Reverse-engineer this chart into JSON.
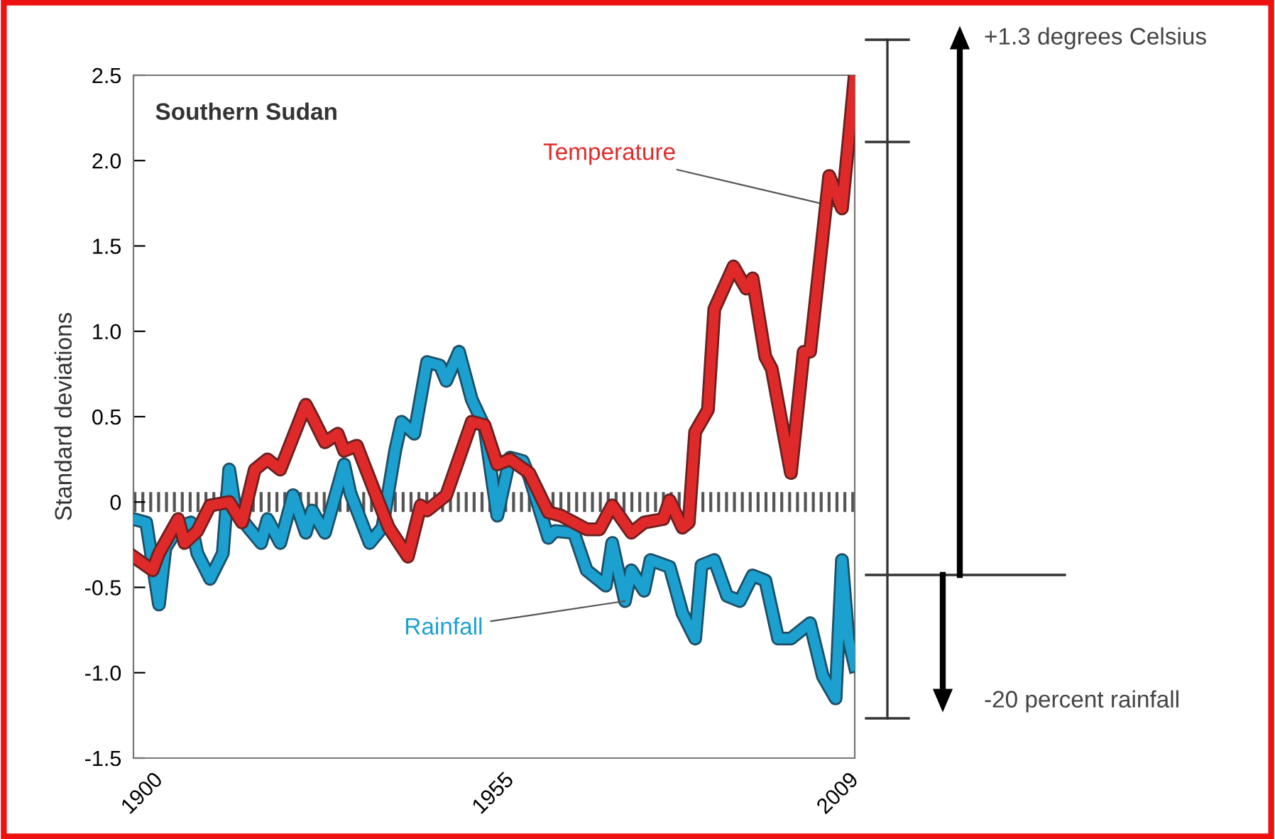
{
  "chart_data": {
    "type": "line",
    "title": "Southern Sudan",
    "ylabel": "Standard deviations",
    "xlim": [
      1897,
      2010
    ],
    "xticks": [
      1900,
      1955,
      2009
    ],
    "ylim": [
      -1.5,
      2.5
    ],
    "yticks": [
      {
        "value": -1.5,
        "label": "-1.5"
      },
      {
        "value": -1.0,
        "label": "-1.0"
      },
      {
        "value": -0.5,
        "label": "-0.5"
      },
      0,
      0.5,
      {
        "value": 1.0,
        "label": "1.0"
      },
      1.5,
      {
        "value": 2.0,
        "label": "2.0"
      },
      2.5
    ],
    "grid": false,
    "legend": false,
    "line_style": "solid",
    "marker": "none",
    "ref_lines": [
      {
        "axis": "y",
        "value": 0,
        "color": "#555555",
        "line_style": "dotted"
      }
    ],
    "annotations": [
      "+1.3 degrees Celsius",
      "-20 percent rainfall"
    ],
    "series": [
      {
        "name": "Rainfall",
        "color": "#1ba0d0",
        "x": [
          1897,
          1899,
          1901,
          1902,
          1904,
          1906,
          1907,
          1909,
          1911,
          1912,
          1913,
          1915,
          1917,
          1918,
          1920,
          1922,
          1924,
          1925,
          1927,
          1930,
          1931,
          1934,
          1936,
          1938,
          1939,
          1941,
          1943,
          1945,
          1946,
          1948,
          1950,
          1952,
          1954,
          1956,
          1958,
          1959,
          1962,
          1963,
          1966,
          1968,
          1971,
          1972,
          1974,
          1975,
          1977,
          1978,
          1981,
          1983,
          1985,
          1986,
          1988,
          1990,
          1992,
          1994,
          1996,
          1998,
          2000,
          2003,
          2005,
          2007,
          2008,
          2009,
          2010
        ],
        "values": [
          -0.1,
          -0.12,
          -0.6,
          -0.27,
          -0.15,
          -0.12,
          -0.3,
          -0.45,
          -0.3,
          0.19,
          -0.05,
          -0.15,
          -0.24,
          -0.1,
          -0.24,
          0.04,
          -0.18,
          -0.05,
          -0.18,
          0.22,
          0.05,
          -0.24,
          -0.15,
          0.3,
          0.47,
          0.4,
          0.82,
          0.8,
          0.71,
          0.88,
          0.6,
          0.44,
          -0.08,
          0.26,
          0.24,
          0.15,
          -0.21,
          -0.17,
          -0.18,
          -0.4,
          -0.49,
          -0.24,
          -0.58,
          -0.4,
          -0.52,
          -0.34,
          -0.38,
          -0.65,
          -0.8,
          -0.37,
          -0.34,
          -0.55,
          -0.58,
          -0.43,
          -0.46,
          -0.8,
          -0.8,
          -0.71,
          -1.02,
          -1.15,
          -0.34,
          -0.8,
          -0.96
        ]
      },
      {
        "name": "Temperature",
        "color": "#e02a2a",
        "x": [
          1897,
          1900,
          1901,
          1904,
          1905,
          1907,
          1909,
          1912,
          1914,
          1916,
          1918,
          1920,
          1924,
          1925,
          1927,
          1929,
          1930,
          1932,
          1935,
          1937,
          1940,
          1942,
          1943,
          1946,
          1950,
          1952,
          1954,
          1956,
          1959,
          1962,
          1964,
          1966,
          1968,
          1970,
          1972,
          1975,
          1977,
          1980,
          1981,
          1983,
          1984,
          1985,
          1987,
          1988,
          1991,
          1993,
          1994,
          1996,
          1997,
          2000,
          2002,
          2003,
          2006,
          2008,
          2009,
          2010
        ],
        "values": [
          -0.32,
          -0.4,
          -0.3,
          -0.1,
          -0.24,
          -0.17,
          -0.02,
          0.0,
          -0.12,
          0.19,
          0.25,
          0.19,
          0.57,
          0.5,
          0.35,
          0.4,
          0.3,
          0.33,
          0.04,
          -0.15,
          -0.32,
          -0.02,
          -0.05,
          0.04,
          0.47,
          0.45,
          0.22,
          0.25,
          0.17,
          -0.06,
          -0.08,
          -0.12,
          -0.16,
          -0.16,
          -0.02,
          -0.18,
          -0.12,
          -0.1,
          0.01,
          -0.15,
          -0.12,
          0.41,
          0.54,
          1.13,
          1.38,
          1.25,
          1.31,
          0.85,
          0.78,
          0.17,
          0.88,
          0.88,
          1.91,
          1.72,
          2.1,
          2.5
        ]
      }
    ]
  }
}
